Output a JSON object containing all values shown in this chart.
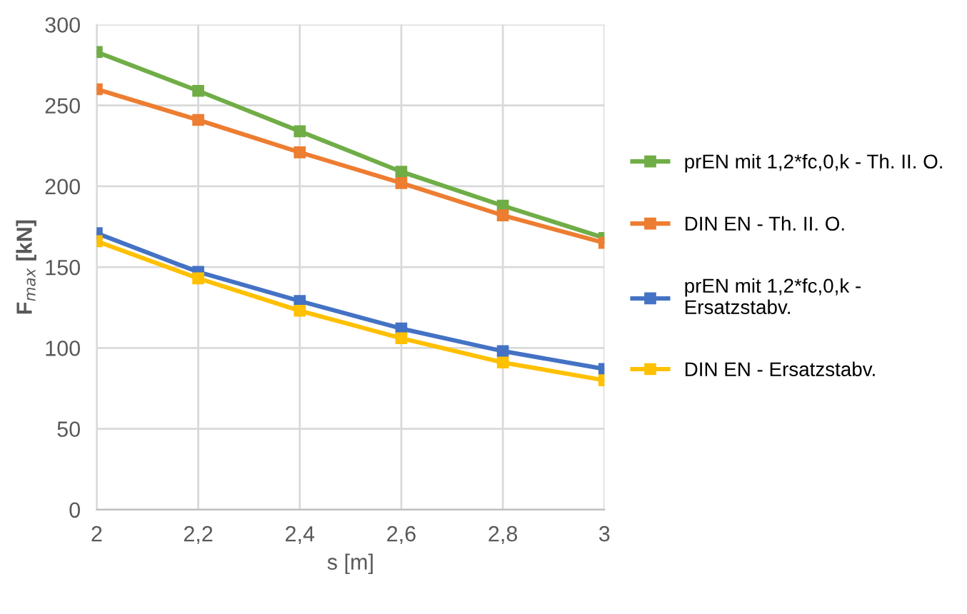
{
  "chart_data": {
    "type": "line",
    "xlabel": "s [m]",
    "ylabel": "F$_{max}$ [kN]",
    "x": [
      2,
      2.2,
      2.4,
      2.6,
      2.8,
      3
    ],
    "series": [
      {
        "name": "prEN mit 1,2*fc,0,k - Th. II. O.",
        "color": "#70ad47",
        "values": [
          283,
          259,
          234,
          209,
          188,
          168
        ]
      },
      {
        "name": "DIN EN - Th. II. O.",
        "color": "#ed7d31",
        "values": [
          260,
          241,
          221,
          202,
          182,
          165
        ]
      },
      {
        "name": "prEN mit 1,2*fc,0,k -\nErsatzstabv.",
        "color": "#4472c4",
        "values": [
          171,
          147,
          129,
          112,
          98,
          87
        ]
      },
      {
        "name": "DIN EN - Ersatzstabv.",
        "color": "#ffc000",
        "values": [
          166,
          143,
          123,
          106,
          91,
          80
        ]
      }
    ],
    "xlim": [
      2,
      3
    ],
    "ylim": [
      0,
      300
    ],
    "xticks": [
      2,
      {
        "value": 2.2,
        "label": "2,2"
      },
      {
        "value": 2.4,
        "label": "2,4"
      },
      {
        "value": 2.6,
        "label": "2,6"
      },
      {
        "value": 2.8,
        "label": "2,8"
      },
      3
    ],
    "yticks": [
      0,
      50,
      100,
      150,
      200,
      250,
      300
    ],
    "grid": true,
    "legend": "right",
    "marker": "square",
    "line_style": "solid"
  }
}
